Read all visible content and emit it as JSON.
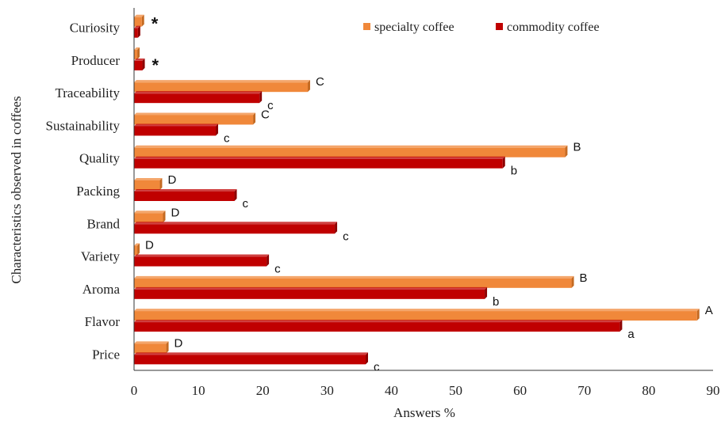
{
  "chart_data": {
    "type": "bar",
    "orientation": "horizontal",
    "title": "",
    "xlabel": "Answers %",
    "ylabel": "Characteristics observed in coffees",
    "xlim": [
      0,
      90
    ],
    "xticks": [
      "0",
      "10",
      "20",
      "30",
      "40",
      "50",
      "60",
      "70",
      "80",
      "90"
    ],
    "grid": false,
    "legend_position": "top-right",
    "categories": [
      "Curiosity",
      "Producer",
      "Traceability",
      "Sustainability",
      "Quality",
      "Packing",
      "Brand",
      "Variety",
      "Aroma",
      "Flavor",
      "Price"
    ],
    "series": [
      {
        "name": "specialty coffee",
        "color": "#f0883a",
        "values": [
          1.2,
          0.5,
          27,
          18.5,
          67,
          4,
          4.5,
          0.5,
          68,
          87.5,
          5
        ],
        "labels": [
          "*",
          "",
          "C",
          "C",
          "B",
          "D",
          "D",
          "D",
          "B",
          "A",
          "D"
        ]
      },
      {
        "name": "commodity coffee",
        "color": "#c00000",
        "values": [
          0.6,
          1.3,
          19.5,
          12.7,
          57.3,
          15.6,
          31.2,
          20.6,
          54.5,
          75.5,
          36
        ],
        "labels": [
          "",
          "*",
          "c",
          "c",
          "b",
          "c",
          "c",
          "c",
          "b",
          "a",
          "c"
        ]
      }
    ]
  }
}
